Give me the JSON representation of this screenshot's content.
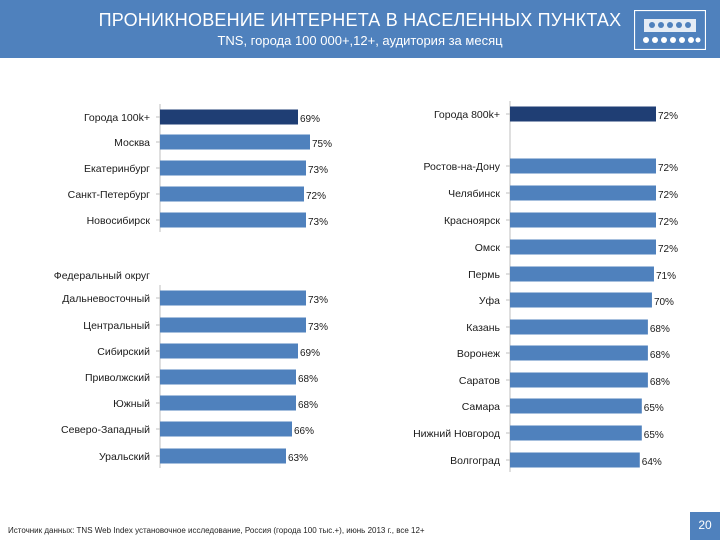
{
  "header": {
    "title": "ПРОНИКНОВЕНИЕ ИНТЕРНЕТА В НАСЕЛЕННЫХ ПУНКТАХ",
    "subtitle": "TNS, города 100 000+,12+, аудитория за месяц"
  },
  "colors": {
    "header_bg": "#4f81bd",
    "bar": "#4f81bd",
    "bar_highlight": "#1f3e74",
    "axis": "#bfbfbf",
    "text": "#1a1a1a"
  },
  "chart_data": [
    {
      "type": "bar",
      "orientation": "horizontal",
      "categories": [
        "Города 100k+",
        "Москва",
        "Екатеринбург",
        "Санкт-Петербург",
        "Новосибирск"
      ],
      "values": [
        69,
        75,
        73,
        72,
        73
      ],
      "labels": [
        "69%",
        "75%",
        "73%",
        "72%",
        "73%"
      ],
      "highlight_index": 0,
      "xlim": [
        0,
        75
      ]
    },
    {
      "type": "bar",
      "orientation": "horizontal",
      "title": "Федеральный округ",
      "categories": [
        "Дальневосточный",
        "Центральный",
        "Сибирский",
        "Приволжский",
        "Южный",
        "Северо-Западный",
        "Уральский"
      ],
      "values": [
        73,
        73,
        69,
        68,
        68,
        66,
        63
      ],
      "labels": [
        "73%",
        "73%",
        "69%",
        "68%",
        "68%",
        "66%",
        "63%"
      ],
      "xlim": [
        0,
        75
      ]
    },
    {
      "type": "bar",
      "orientation": "horizontal",
      "categories": [
        "Города 800k+",
        "Ростов-на-Дону",
        "Челябинск",
        "Красноярск",
        "Омск",
        "Пермь",
        "Уфа",
        "Казань",
        "Воронеж",
        "Саратов",
        "Самара",
        "Нижний Новгород",
        "Волгоград"
      ],
      "values": [
        72,
        72,
        72,
        72,
        72,
        71,
        70,
        68,
        68,
        68,
        65,
        65,
        64
      ],
      "labels": [
        "72%",
        "72%",
        "72%",
        "72%",
        "72%",
        "71%",
        "70%",
        "68%",
        "68%",
        "68%",
        "65%",
        "65%",
        "64%"
      ],
      "highlight_index": 0,
      "xlim": [
        0,
        72
      ]
    }
  ],
  "footer": {
    "source": "Источник данных: TNS Web Index установочное исследование, Россия (города 100 тыс.+), июнь 2013 г., все 12+",
    "page_number": "20"
  }
}
